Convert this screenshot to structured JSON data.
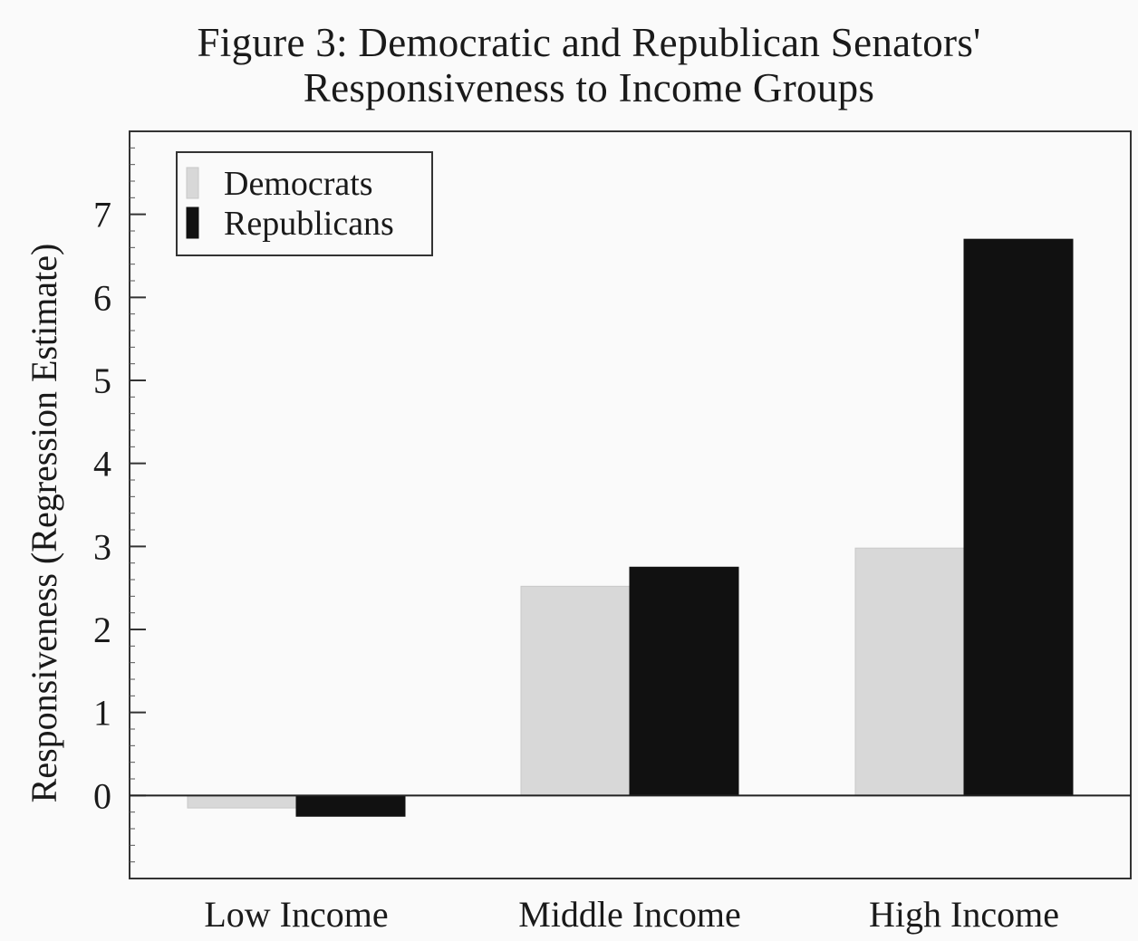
{
  "chart_data": {
    "type": "bar",
    "title": "Figure 3: Democratic and Republican Senators'",
    "subtitle": "Responsiveness to Income Groups",
    "xlabel": "",
    "ylabel": "Responsiveness (Regression Estimate)",
    "categories": [
      "Low Income",
      "Middle Income",
      "High Income"
    ],
    "series": [
      {
        "name": "Democrats",
        "values": [
          -0.15,
          2.52,
          2.98
        ],
        "color": "#d8d8d8"
      },
      {
        "name": "Republicans",
        "values": [
          -0.25,
          2.75,
          6.7
        ],
        "color": "#111111"
      }
    ],
    "yticks": [
      0,
      1,
      2,
      3,
      4,
      5,
      6,
      7
    ],
    "ylim": [
      -1,
      8
    ],
    "grid": false,
    "legend_position": "top-left",
    "baseline": 0
  }
}
